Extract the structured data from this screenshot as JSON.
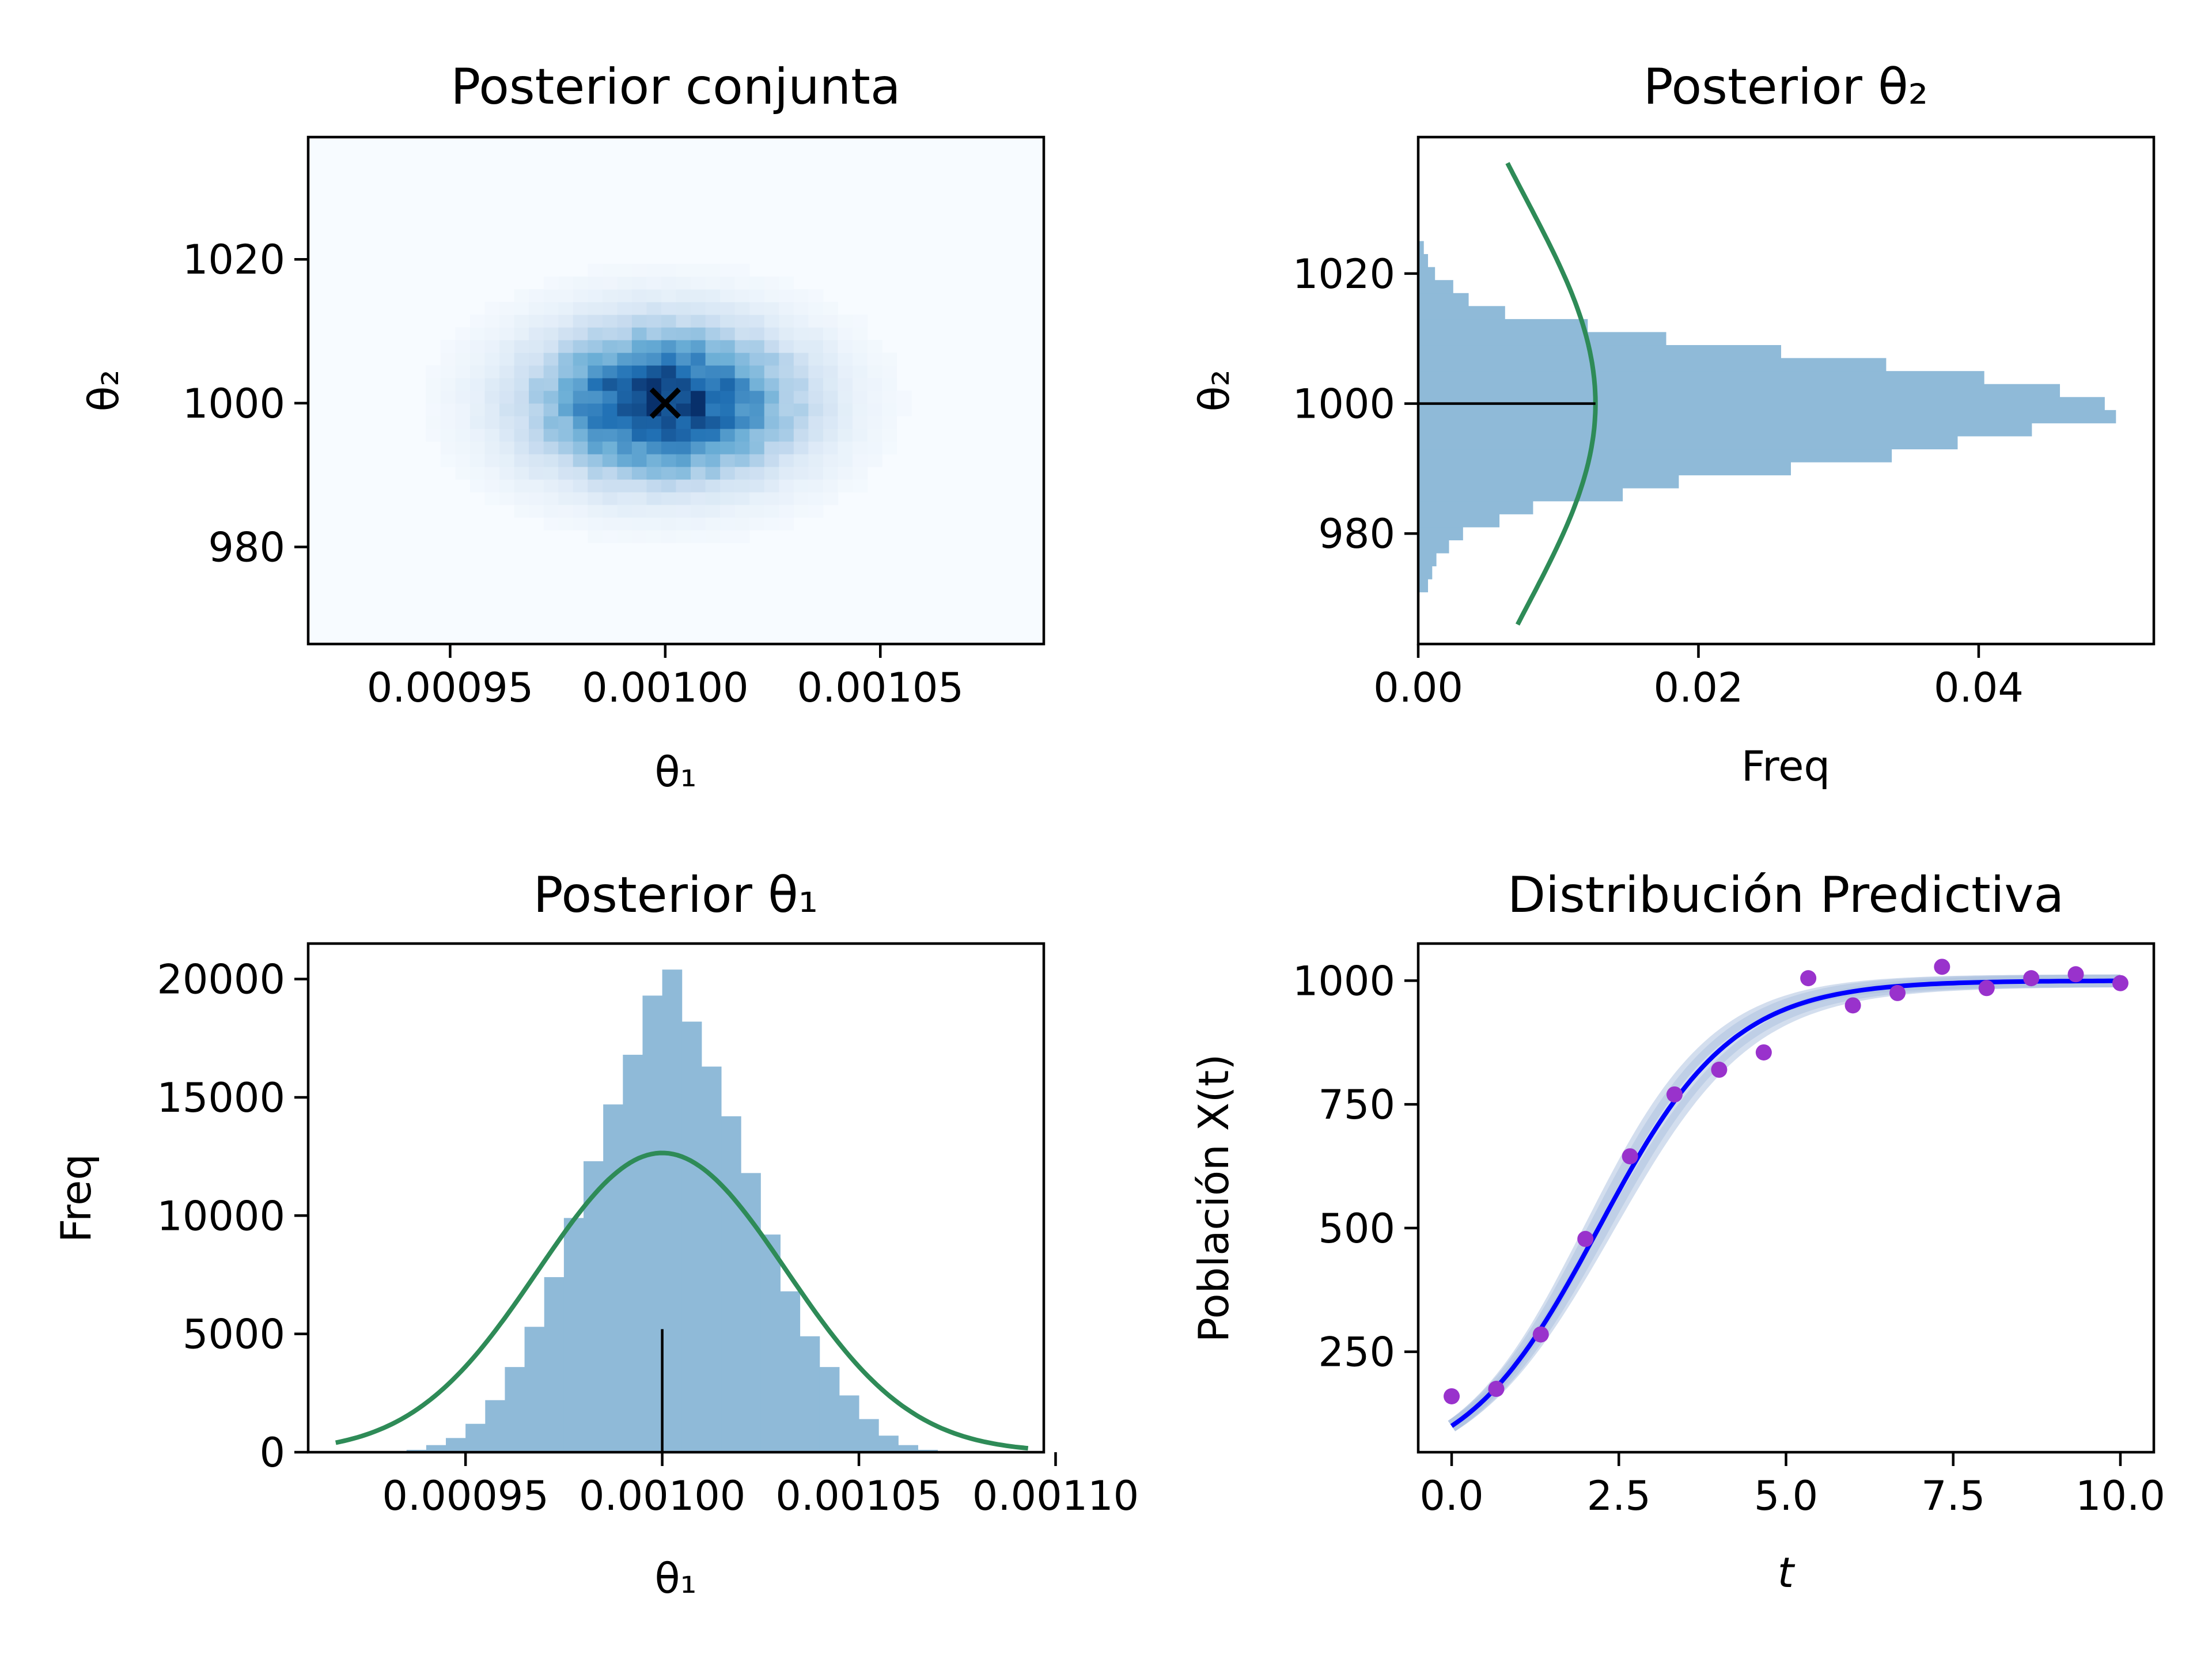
{
  "chart_data": [
    {
      "panel": "joint",
      "type": "heatmap",
      "title": "Posterior conjunta",
      "xlabel": "θ₁",
      "ylabel": "θ₂",
      "xlim": [
        0.000917,
        0.001088
      ],
      "ylim": [
        966.5,
        1037
      ],
      "xticks": [
        0.00095,
        0.001,
        0.00105
      ],
      "xticklabels": [
        "0.00095",
        "0.00100",
        "0.00105"
      ],
      "yticks": [
        980,
        1000,
        1020
      ],
      "yticklabels": [
        "980",
        "1000",
        "1020"
      ],
      "colormap": "Blues",
      "center": [
        0.001,
        1000
      ],
      "spread": [
        2e-05,
        7
      ],
      "marker": {
        "symbol": "x",
        "x": 0.001,
        "y": 1000,
        "color": "#000000"
      }
    },
    {
      "panel": "theta2",
      "type": "bar",
      "orientation": "horizontal",
      "title": "Posterior θ₂",
      "xlabel": "Freq",
      "ylabel": "θ₂",
      "xlim": [
        0,
        0.0525
      ],
      "ylim": [
        963,
        1041
      ],
      "xticks": [
        0.0,
        0.02,
        0.04
      ],
      "xticklabels": [
        "0.00",
        "0.02",
        "0.04"
      ],
      "yticks": [
        980,
        1000,
        1020
      ],
      "yticklabels": [
        "980",
        "1000",
        "1020"
      ],
      "bins": [
        {
          "y0": 971.0,
          "y1": 973.0,
          "value": 0.0007
        },
        {
          "y0": 973.0,
          "y1": 975.0,
          "value": 0.001
        },
        {
          "y0": 975.0,
          "y1": 977.0,
          "value": 0.0013
        },
        {
          "y0": 977.0,
          "y1": 979.0,
          "value": 0.0022
        },
        {
          "y0": 979.0,
          "y1": 981.0,
          "value": 0.0032
        },
        {
          "y0": 981.0,
          "y1": 983.0,
          "value": 0.0058
        },
        {
          "y0": 983.0,
          "y1": 985.0,
          "value": 0.0082
        },
        {
          "y0": 985.0,
          "y1": 987.0,
          "value": 0.0146
        },
        {
          "y0": 987.0,
          "y1": 989.0,
          "value": 0.0186
        },
        {
          "y0": 989.0,
          "y1": 991.0,
          "value": 0.0266
        },
        {
          "y0": 991.0,
          "y1": 993.0,
          "value": 0.0338
        },
        {
          "y0": 993.0,
          "y1": 995.0,
          "value": 0.0385
        },
        {
          "y0": 995.0,
          "y1": 997.0,
          "value": 0.0438
        },
        {
          "y0": 997.0,
          "y1": 999.0,
          "value": 0.0498
        },
        {
          "y0": 999.0,
          "y1": 1001.0,
          "value": 0.049
        },
        {
          "y0": 1001.0,
          "y1": 1003.0,
          "value": 0.0458
        },
        {
          "y0": 1003.0,
          "y1": 1005.0,
          "value": 0.0404
        },
        {
          "y0": 1005.0,
          "y1": 1007.0,
          "value": 0.0334
        },
        {
          "y0": 1007.0,
          "y1": 1009.0,
          "value": 0.0259
        },
        {
          "y0": 1009.0,
          "y1": 1011.0,
          "value": 0.0177
        },
        {
          "y0": 1011.0,
          "y1": 1013.0,
          "value": 0.0121
        },
        {
          "y0": 1013.0,
          "y1": 1015.0,
          "value": 0.0062
        },
        {
          "y0": 1015.0,
          "y1": 1017.0,
          "value": 0.0036
        },
        {
          "y0": 1017.0,
          "y1": 1019.0,
          "value": 0.0025
        },
        {
          "y0": 1019.0,
          "y1": 1021.0,
          "value": 0.0012
        },
        {
          "y0": 1021.0,
          "y1": 1023.0,
          "value": 0.0007
        },
        {
          "y0": 1023.0,
          "y1": 1025.0,
          "value": 0.0004
        }
      ],
      "bar_color": "#8fbad8",
      "curve": {
        "type": "gaussian",
        "mean": 1000,
        "sd": 31.6,
        "peak": 0.01265,
        "range": [
          966,
          1037
        ],
        "color": "#2e8b57"
      },
      "reference_line": {
        "y": 1000,
        "x0": 0,
        "x1": 0.01265,
        "color": "#000000"
      }
    },
    {
      "panel": "theta1",
      "type": "bar",
      "title": "Posterior θ₁",
      "xlabel": "θ₁",
      "ylabel": "Freq",
      "xlim": [
        0.00091,
        0.001097
      ],
      "ylim": [
        0,
        21500
      ],
      "xticks": [
        0.00095,
        0.001,
        0.00105,
        0.0011
      ],
      "xticklabels": [
        "0.00095",
        "0.00100",
        "0.00105",
        "0.00110"
      ],
      "yticks": [
        0,
        5000,
        10000,
        15000,
        20000
      ],
      "yticklabels": [
        "0",
        "5000",
        "10000",
        "15000",
        "20000"
      ],
      "bins": [
        {
          "x0": 0.000935,
          "x1": 0.00094,
          "value": 100
        },
        {
          "x0": 0.00094,
          "x1": 0.000945,
          "value": 300
        },
        {
          "x0": 0.000945,
          "x1": 0.00095,
          "value": 600
        },
        {
          "x0": 0.00095,
          "x1": 0.000955,
          "value": 1200
        },
        {
          "x0": 0.000955,
          "x1": 0.00096,
          "value": 2200
        },
        {
          "x0": 0.00096,
          "x1": 0.000965,
          "value": 3600
        },
        {
          "x0": 0.000965,
          "x1": 0.00097,
          "value": 5300
        },
        {
          "x0": 0.00097,
          "x1": 0.000975,
          "value": 7400
        },
        {
          "x0": 0.000975,
          "x1": 0.00098,
          "value": 9900
        },
        {
          "x0": 0.00098,
          "x1": 0.000985,
          "value": 12300
        },
        {
          "x0": 0.000985,
          "x1": 0.00099,
          "value": 14700
        },
        {
          "x0": 0.00099,
          "x1": 0.000995,
          "value": 16800
        },
        {
          "x0": 0.000995,
          "x1": 0.001,
          "value": 19300
        },
        {
          "x0": 0.001,
          "x1": 0.001005,
          "value": 20400
        },
        {
          "x0": 0.001005,
          "x1": 0.00101,
          "value": 18200
        },
        {
          "x0": 0.00101,
          "x1": 0.001015,
          "value": 16300
        },
        {
          "x0": 0.001015,
          "x1": 0.00102,
          "value": 14200
        },
        {
          "x0": 0.00102,
          "x1": 0.001025,
          "value": 11800
        },
        {
          "x0": 0.001025,
          "x1": 0.00103,
          "value": 9200
        },
        {
          "x0": 0.00103,
          "x1": 0.001035,
          "value": 6800
        },
        {
          "x0": 0.001035,
          "x1": 0.00104,
          "value": 4900
        },
        {
          "x0": 0.00104,
          "x1": 0.001045,
          "value": 3600
        },
        {
          "x0": 0.001045,
          "x1": 0.00105,
          "value": 2400
        },
        {
          "x0": 0.00105,
          "x1": 0.001055,
          "value": 1400
        },
        {
          "x0": 0.001055,
          "x1": 0.00106,
          "value": 700
        },
        {
          "x0": 0.00106,
          "x1": 0.001065,
          "value": 300
        },
        {
          "x0": 0.001065,
          "x1": 0.00107,
          "value": 100
        }
      ],
      "bar_color": "#8fbad8",
      "curve": {
        "type": "gaussian",
        "mean": 0.001,
        "sd": 3.16e-05,
        "peak": 12650,
        "range": [
          0.000917,
          0.001093
        ],
        "color": "#2e8b57"
      },
      "reference_line": {
        "x": 0.001,
        "y0": 0,
        "y1": 5200,
        "color": "#000000"
      }
    },
    {
      "panel": "predictive",
      "type": "line",
      "title": "Distribución Predictiva",
      "xlabel": "t",
      "ylabel": "Población X(t)",
      "xlim": [
        -0.5,
        10.5
      ],
      "ylim": [
        47,
        1075
      ],
      "xticks": [
        0.0,
        2.5,
        5.0,
        7.5,
        10.0
      ],
      "xticklabels": [
        "0.0",
        "2.5",
        "5.0",
        "7.5",
        "10.0"
      ],
      "yticks": [
        250,
        500,
        750,
        1000
      ],
      "yticklabels": [
        "250",
        "500",
        "750",
        "1000"
      ],
      "series": [
        {
          "type": "line",
          "model": "logistic",
          "x0": 100,
          "K": 1000,
          "r": 1.0,
          "t_range": [
            0,
            10
          ],
          "color": "#0000ff"
        },
        {
          "type": "band",
          "model": "logistic",
          "x0": 100,
          "K": 1000,
          "r_values": [
            0.94,
            0.97,
            1.03,
            1.06
          ],
          "color": "#aec3e0"
        },
        {
          "type": "scatter",
          "color": "#9932cc",
          "x": [
            0.0,
            0.667,
            1.333,
            2.0,
            2.667,
            3.333,
            4.0,
            4.667,
            5.333,
            6.0,
            6.667,
            7.333,
            8.0,
            8.667,
            9.333,
            10.0
          ],
          "y": [
            160,
            175,
            285,
            478,
            645,
            770,
            820,
            855,
            1005,
            950,
            975,
            1028,
            985,
            1005,
            1013,
            995
          ]
        }
      ]
    }
  ]
}
